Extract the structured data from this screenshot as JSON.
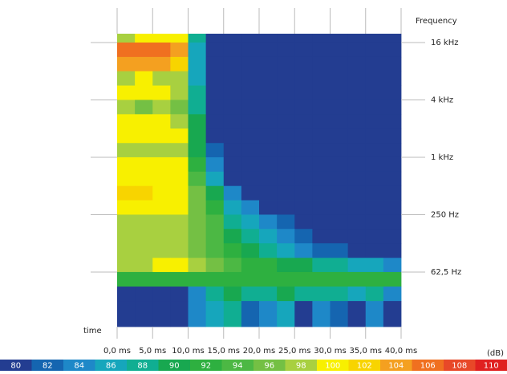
{
  "chart_data": {
    "type": "heatmap",
    "x_label": "time",
    "y_label": "Frequency",
    "colorbar_label": "(dB)",
    "xlim": [
      0,
      40
    ],
    "xticks": [
      {
        "value": 0,
        "label": "0,0 ms"
      },
      {
        "value": 5,
        "label": "5,0 ms"
      },
      {
        "value": 10,
        "label": "10,0 ms"
      },
      {
        "value": 15,
        "label": "15,0 ms"
      },
      {
        "value": 20,
        "label": "20,0 ms"
      },
      {
        "value": 25,
        "label": "25,0 ms"
      },
      {
        "value": 30,
        "label": "30,0 ms"
      },
      {
        "value": 35,
        "label": "35,0 ms"
      },
      {
        "value": 40,
        "label": "40,0 ms"
      }
    ],
    "ylim": [
      16.7,
      19800
    ],
    "ylog": true,
    "yticks": [
      {
        "value": 16000,
        "label": "16 kHz"
      },
      {
        "value": 4000,
        "label": "4 kHz"
      },
      {
        "value": 1000,
        "label": "1 kHz"
      },
      {
        "value": 250,
        "label": "250 Hz"
      },
      {
        "value": 62.5,
        "label": "62,5 Hz"
      }
    ],
    "xbins": [
      0,
      2.5,
      5,
      7.5,
      10,
      12.5,
      15,
      17.5,
      20,
      22.5,
      25,
      27.5,
      30,
      32.5,
      35,
      37.5,
      40
    ],
    "ybins": [
      19800,
      16000,
      11300,
      8000,
      5660,
      4000,
      2830,
      2000,
      1410,
      1000,
      707,
      500,
      354,
      250,
      177,
      125,
      88,
      62.5,
      44,
      31,
      16.7
    ],
    "z": [
      [
        98,
        100,
        100,
        100,
        88,
        80,
        80,
        80,
        80,
        80,
        80,
        80,
        80,
        80,
        80,
        80
      ],
      [
        106,
        106,
        106,
        104,
        86,
        80,
        80,
        80,
        80,
        80,
        80,
        80,
        80,
        80,
        80,
        80
      ],
      [
        104,
        104,
        104,
        102,
        86,
        80,
        80,
        80,
        80,
        80,
        80,
        80,
        80,
        80,
        80,
        80
      ],
      [
        98,
        100,
        98,
        98,
        86,
        80,
        80,
        80,
        80,
        80,
        80,
        80,
        80,
        80,
        80,
        80
      ],
      [
        100,
        100,
        100,
        98,
        88,
        80,
        80,
        80,
        80,
        80,
        80,
        80,
        80,
        80,
        80,
        80
      ],
      [
        98,
        96,
        98,
        96,
        88,
        80,
        80,
        80,
        80,
        80,
        80,
        80,
        80,
        80,
        80,
        80
      ],
      [
        100,
        100,
        100,
        98,
        90,
        80,
        80,
        80,
        80,
        80,
        80,
        80,
        80,
        80,
        80,
        80
      ],
      [
        100,
        100,
        100,
        100,
        90,
        80,
        80,
        80,
        80,
        80,
        80,
        80,
        80,
        80,
        80,
        80
      ],
      [
        98,
        98,
        98,
        98,
        90,
        82,
        80,
        80,
        80,
        80,
        80,
        80,
        80,
        80,
        80,
        80
      ],
      [
        100,
        100,
        100,
        100,
        92,
        84,
        80,
        80,
        80,
        80,
        80,
        80,
        80,
        80,
        80,
        80
      ],
      [
        100,
        100,
        100,
        100,
        94,
        86,
        80,
        80,
        80,
        80,
        80,
        80,
        80,
        80,
        80,
        80
      ],
      [
        102,
        102,
        100,
        100,
        96,
        90,
        84,
        80,
        80,
        80,
        80,
        80,
        80,
        80,
        80,
        80
      ],
      [
        100,
        100,
        100,
        100,
        96,
        92,
        86,
        84,
        80,
        80,
        80,
        80,
        80,
        80,
        80,
        80
      ],
      [
        98,
        98,
        98,
        98,
        96,
        94,
        88,
        86,
        84,
        82,
        80,
        80,
        80,
        80,
        80,
        80
      ],
      [
        98,
        98,
        98,
        98,
        96,
        94,
        90,
        88,
        86,
        84,
        82,
        80,
        80,
        80,
        80,
        80
      ],
      [
        98,
        98,
        98,
        98,
        96,
        94,
        92,
        90,
        88,
        86,
        84,
        82,
        82,
        80,
        80,
        80
      ],
      [
        98,
        98,
        100,
        100,
        98,
        96,
        94,
        92,
        92,
        90,
        90,
        88,
        88,
        86,
        86,
        84
      ],
      [
        92,
        92,
        92,
        92,
        92,
        92,
        92,
        92,
        92,
        92,
        92,
        92,
        92,
        92,
        92,
        92
      ],
      [
        80,
        80,
        80,
        80,
        84,
        88,
        90,
        88,
        88,
        90,
        88,
        88,
        88,
        86,
        88,
        84
      ],
      [
        80,
        80,
        80,
        80,
        84,
        86,
        88,
        82,
        84,
        86,
        80,
        84,
        82,
        80,
        84,
        80
      ]
    ],
    "colorbar": {
      "values": [
        80,
        82,
        84,
        86,
        88,
        90,
        92,
        94,
        96,
        98,
        100,
        102,
        104,
        106,
        108,
        110
      ],
      "colors": [
        "#233d91",
        "#1565b0",
        "#1e88c8",
        "#16a6bc",
        "#10ae92",
        "#18a850",
        "#2eb040",
        "#4cb844",
        "#74c044",
        "#a8d040",
        "#f8f000",
        "#f8d400",
        "#f4a020",
        "#f07020",
        "#e84828",
        "#e02020"
      ]
    }
  }
}
